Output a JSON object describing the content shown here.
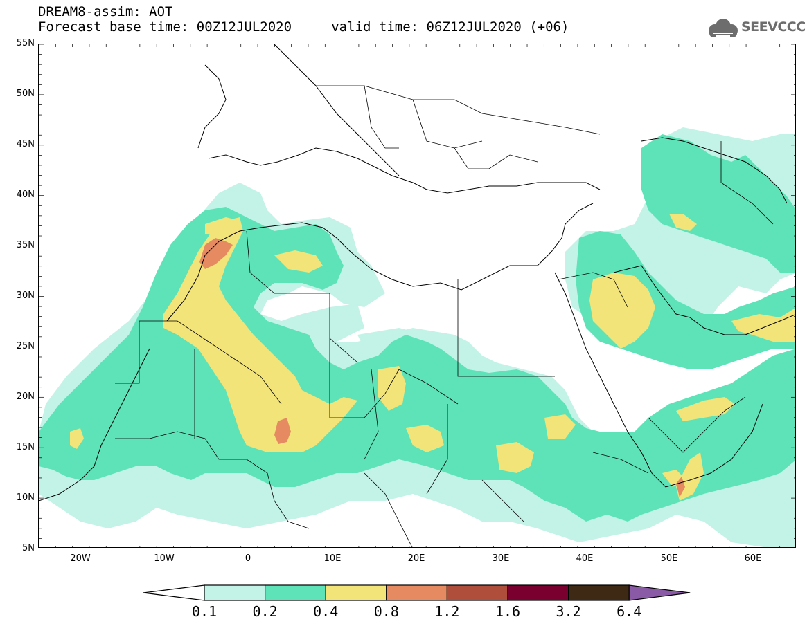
{
  "header": {
    "title_line1": "DREAM8-assim: AOT",
    "title_line2": "Forecast base time: 00Z12JUL2020     valid time: 06Z12JUL2020 (+06)",
    "logo_text": "SEEVCCC",
    "logo_icon": "cloud-icon"
  },
  "map": {
    "projection": "cylindrical",
    "lon_range": [
      -25,
      65
    ],
    "lat_range": [
      5,
      55
    ],
    "lat_labels": [
      "55N",
      "50N",
      "45N",
      "40N",
      "35N",
      "30N",
      "25N",
      "20N",
      "15N",
      "10N",
      "5N"
    ],
    "lon_labels": [
      "20W",
      "10W",
      "0",
      "10E",
      "20E",
      "30E",
      "40E",
      "50E",
      "60E"
    ],
    "field": "AOT"
  },
  "colorbar": {
    "levels": [
      "0.1",
      "0.2",
      "0.4",
      "0.8",
      "1.2",
      "1.6",
      "3.2",
      "6.4"
    ],
    "colors": [
      "#ffffff",
      "#c3f2e6",
      "#5ee2b8",
      "#f3e479",
      "#e58a61",
      "#b04e3c",
      "#7a0030",
      "#3e2a14",
      "#8a5aa6"
    ]
  }
}
